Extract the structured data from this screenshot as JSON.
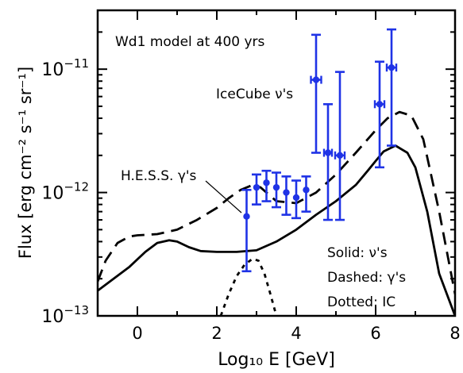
{
  "chart_data": {
    "type": "scatter",
    "title": "Wd1 model at 400 yrs",
    "xlabel": "Log₁₀ E [GeV]",
    "ylabel": "Flux [erg cm⁻² s⁻¹ sr⁻¹]",
    "xlim": [
      -1,
      8
    ],
    "ylim": [
      1e-13,
      3e-11
    ],
    "yscale": "log",
    "x_ticks": [
      0,
      2,
      4,
      6,
      8
    ],
    "x_tick_labels": [
      "0",
      "2",
      "4",
      "6",
      "8"
    ],
    "y_ticks": [
      {
        "value": 1e-13,
        "mantissa": "10",
        "exponent": "−13"
      },
      {
        "value": 1e-12,
        "mantissa": "10",
        "exponent": "−12"
      },
      {
        "value": 1e-11,
        "mantissa": "10",
        "exponent": "−11"
      }
    ],
    "grid": false,
    "legend_lines": [
      "Solid: ν's",
      "Dashed: γ's",
      "Dotted: IC"
    ],
    "annotations": {
      "hess": "H.E.S.S. γ's",
      "icecube": "IceCube ν's"
    },
    "marker_color": "#1f33e6",
    "series": [
      {
        "style": "solid",
        "x": [
          -1,
          -0.6,
          -0.2,
          0.2,
          0.5,
          0.8,
          1.0,
          1.3,
          1.6,
          2.0,
          2.5,
          3.0,
          3.5,
          4.0,
          4.5,
          5.0,
          5.5,
          5.8,
          6.0,
          6.2,
          6.5,
          6.8,
          7.0,
          7.3,
          7.6,
          8.0
        ],
        "y": [
          1.6e-13,
          2e-13,
          2.5e-13,
          3.3e-13,
          3.9e-13,
          4.1e-13,
          4e-13,
          3.6e-13,
          3.35e-13,
          3.3e-13,
          3.3e-13,
          3.4e-13,
          4e-13,
          5e-13,
          6.6e-13,
          8.5e-13,
          1.15e-12,
          1.5e-12,
          1.8e-12,
          2.15e-12,
          2.4e-12,
          2.1e-12,
          1.6e-12,
          7e-13,
          2.2e-13,
          1e-13
        ]
      },
      {
        "style": "dashed",
        "x": [
          -1,
          -0.8,
          -0.5,
          -0.2,
          0.0,
          0.5,
          1.0,
          1.5,
          2.0,
          2.3,
          2.6,
          2.9,
          3.1,
          3.5,
          4.0,
          4.5,
          5.0,
          5.5,
          6.0,
          6.3,
          6.6,
          6.9,
          7.2,
          7.6,
          8.0
        ],
        "y": [
          1.9e-13,
          2.8e-13,
          3.9e-13,
          4.4e-13,
          4.5e-13,
          4.6e-13,
          5e-13,
          6e-13,
          7.5e-13,
          9e-13,
          1.05e-12,
          1.15e-12,
          1.1e-12,
          8.5e-13,
          8.2e-13,
          1e-12,
          1.4e-12,
          2.1e-12,
          3.2e-12,
          4e-12,
          4.5e-12,
          4.2e-12,
          2.7e-12,
          7e-13,
          1.5e-13
        ]
      },
      {
        "style": "dotted",
        "x": [
          2.1,
          2.3,
          2.5,
          2.7,
          2.9,
          3.05,
          3.2,
          3.35,
          3.5
        ],
        "y": [
          1e-13,
          1.5e-13,
          2.1e-13,
          2.6e-13,
          2.9e-13,
          2.8e-13,
          2.2e-13,
          1.5e-13,
          1e-13
        ]
      }
    ],
    "points": [
      {
        "group": "hess",
        "x": 2.75,
        "y": 6.4e-13,
        "ylo": 2.3e-13,
        "yhi": 1.05e-12
      },
      {
        "group": "hess",
        "x": 3.0,
        "y": 1.1e-12,
        "ylo": 8e-13,
        "yhi": 1.4e-12
      },
      {
        "group": "hess",
        "x": 3.25,
        "y": 1.2e-12,
        "ylo": 8.5e-13,
        "yhi": 1.5e-12
      },
      {
        "group": "hess",
        "x": 3.5,
        "y": 1.1e-12,
        "ylo": 7.6e-13,
        "yhi": 1.45e-12
      },
      {
        "group": "hess",
        "x": 3.75,
        "y": 1e-12,
        "ylo": 6.6e-13,
        "yhi": 1.35e-12
      },
      {
        "group": "hess",
        "x": 4.0,
        "y": 9.1e-13,
        "ylo": 6.2e-13,
        "yhi": 1.25e-12
      },
      {
        "group": "hess",
        "x": 4.25,
        "y": 1.05e-12,
        "ylo": 7e-13,
        "yhi": 1.35e-12
      },
      {
        "group": "icecube",
        "x": 4.5,
        "y": 8.2e-12,
        "ylo": 2.1e-12,
        "yhi": 1.9e-11,
        "xerr": 0.13
      },
      {
        "group": "icecube",
        "x": 4.8,
        "y": 2.1e-12,
        "ylo": 6e-13,
        "yhi": 5.2e-12,
        "xerr": 0.1
      },
      {
        "group": "icecube",
        "x": 5.1,
        "y": 2e-12,
        "ylo": 6e-13,
        "yhi": 9.5e-12,
        "xerr": 0.12
      },
      {
        "group": "icecube",
        "x": 6.1,
        "y": 5.2e-12,
        "ylo": 1.6e-12,
        "yhi": 1.15e-11,
        "xerr": 0.12
      },
      {
        "group": "icecube",
        "x": 6.4,
        "y": 1.03e-11,
        "ylo": 2.4e-12,
        "yhi": 2.1e-11,
        "xerr": 0.12
      }
    ]
  }
}
